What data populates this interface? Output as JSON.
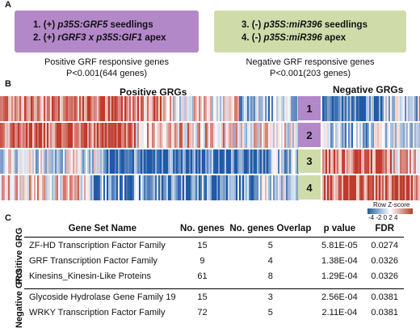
{
  "panel_a": {
    "letter": "A",
    "positive_box": {
      "line1_prefix": "1. (+) ",
      "line1_italic": "p35S:GRF5",
      "line1_suffix": " seedlings",
      "line2_prefix": "2. (+) ",
      "line2_italic": "rGRF3 x p35S:GIF1",
      "line2_suffix": " apex"
    },
    "negative_box": {
      "line1_prefix": "3. (-) ",
      "line1_italic": "p35S:miR396",
      "line1_suffix": " seedlings",
      "line2_prefix": "4. (-) ",
      "line2_italic": "p35S:miR396",
      "line2_suffix": " apex"
    },
    "positive_desc_1": "Positive GRF responsive genes",
    "positive_desc_2": "P<0.001(644 genes)",
    "negative_desc_1": "Negative GRF responsive genes",
    "negative_desc_2": "P<0.001(203 genes)"
  },
  "panel_b": {
    "letter": "B",
    "positive_title": "Positive GRGs",
    "negative_title": "Negative GRGs",
    "row_labels": [
      "1",
      "2",
      "3",
      "4"
    ],
    "row_label_colors": [
      "#b388c9",
      "#b388c9",
      "#cfdcaa",
      "#cfdcaa"
    ],
    "legend_title": "Row Z-score",
    "legend_ticks": "-4 -2  0  2  4",
    "colors": {
      "low": "#1f5aa6",
      "mid": "#ffffff",
      "high": "#c0392b"
    }
  },
  "panel_c": {
    "letter": "C",
    "headers": [
      "Gene Set Name",
      "No. genes",
      "No. genes Overlap",
      "p value",
      "FDR"
    ],
    "positive_group": "Positive GRG",
    "negative_group": "Negative GRG",
    "positive_rows": [
      [
        "ZF-HD Transcription Factor Family",
        "15",
        "5",
        "5.81E-05",
        "0.0274"
      ],
      [
        "GRF Transcription Factor Family",
        "9",
        "4",
        "1.38E-04",
        "0.0326"
      ],
      [
        "Kinesins_Kinesin-Like Proteins",
        "61",
        "8",
        "1.29E-04",
        "0.0326"
      ]
    ],
    "negative_rows": [
      [
        "Glycoside Hydrolase Gene Family 19",
        "15",
        "3",
        "2.56E-04",
        "0.0381"
      ],
      [
        "WRKY Transcription Factor Family",
        "72",
        "5",
        "2.11E-04",
        "0.0381"
      ]
    ]
  }
}
